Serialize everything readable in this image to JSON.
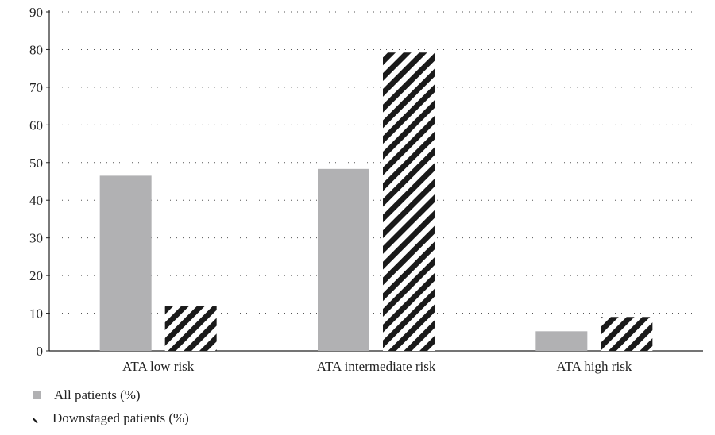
{
  "chart_data": {
    "type": "bar",
    "categories": [
      "ATA low risk",
      "ATA intermediate risk",
      "ATA high risk"
    ],
    "series": [
      {
        "name": "All patients (%)",
        "values": [
          46.5,
          48.3,
          5.2
        ],
        "color": "#b1b1b3",
        "fill": "solid"
      },
      {
        "name": "Downstaged patients (%)",
        "values": [
          11.8,
          79.2,
          9.0
        ],
        "color": "#1a1a1a",
        "fill": "diagonal-hatch"
      }
    ],
    "ylim": [
      0,
      90
    ],
    "yticks": [
      0,
      10,
      20,
      30,
      40,
      50,
      60,
      70,
      80,
      90
    ],
    "grid": "dotted-horizontal",
    "legend_position": "bottom-left",
    "title": "",
    "xlabel": "",
    "ylabel": ""
  }
}
